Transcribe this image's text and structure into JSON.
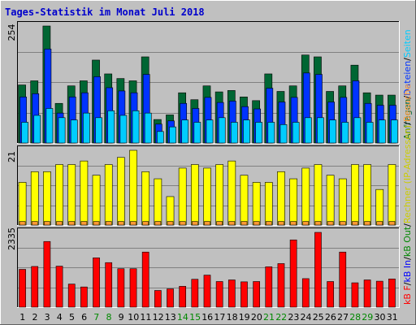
{
  "chart_data": {
    "type": "bar",
    "title": "Tages-Statistik im Monat Juli 2018",
    "x": [
      "1",
      "2",
      "3",
      "4",
      "5",
      "6",
      "7",
      "8",
      "9",
      "10",
      "11",
      "12",
      "13",
      "14",
      "15",
      "16",
      "17",
      "18",
      "19",
      "20",
      "21",
      "22",
      "23",
      "24",
      "25",
      "26",
      "27",
      "28",
      "29",
      "30",
      "31"
    ],
    "weekend_days": [
      "7",
      "8",
      "14",
      "15",
      "21",
      "22",
      "28",
      "29"
    ],
    "panels": [
      {
        "ymax_label": "254",
        "ymax": 254,
        "series": [
          {
            "name": "Anfragen",
            "color": "#006633",
            "values": [
              126,
              135,
              254,
              86,
              124,
              135,
              180,
              150,
              140,
              135,
              187,
              51,
              61,
              109,
              94,
              124,
              111,
              114,
              100,
              92,
              150,
              112,
              124,
              191,
              187,
              112,
              124,
              169,
              109,
              104,
              104
            ]
          },
          {
            "name": "Dateien",
            "color": "#0033ff",
            "values": [
              100,
              107,
              204,
              65,
              100,
              109,
              144,
              120,
              113,
              109,
              149,
              41,
              48,
              86,
              75,
              99,
              88,
              91,
              79,
              74,
              119,
              89,
              99,
              152,
              149,
              89,
              99,
              135,
              86,
              82,
              82
            ]
          },
          {
            "name": "Seiten",
            "color": "#00ccff",
            "values": [
              45,
              60,
              75,
              55,
              50,
              65,
              55,
              70,
              60,
              70,
              65,
              25,
              35,
              50,
              45,
              50,
              55,
              45,
              50,
              45,
              45,
              40,
              45,
              55,
              55,
              50,
              45,
              55,
              45,
              50,
              50
            ]
          }
        ]
      },
      {
        "ymax_label": "21",
        "ymax": 21,
        "series": [
          {
            "name": "Rechner (IP-Adressen)",
            "color": "#ffff00",
            "values": [
              12,
              15,
              15,
              17,
              17,
              18,
              14,
              17,
              19,
              21,
              15,
              13,
              8,
              16,
              17,
              16,
              17,
              18,
              14,
              12,
              12,
              15,
              13,
              16,
              17,
              14,
              13,
              17,
              17,
              10,
              17
            ]
          },
          {
            "name": "Besuche",
            "color": "#ff9933",
            "values": [
              1,
              1,
              1,
              1,
              1,
              1,
              1,
              1,
              1,
              1,
              1,
              1,
              1,
              1,
              1,
              1,
              1,
              1,
              1,
              1,
              1,
              1,
              1,
              1,
              1,
              1,
              1,
              1,
              1,
              1,
              1
            ]
          }
        ]
      },
      {
        "ymax_label": "2335",
        "ymax": 2335,
        "series": [
          {
            "name": "kB F",
            "color": "#ff0000",
            "values": [
              1180,
              1270,
              2050,
              1280,
              720,
              630,
              1540,
              1390,
              1200,
              1200,
              1720,
              520,
              570,
              650,
              870,
              1000,
              800,
              850,
              790,
              800,
              1260,
              1360,
              2100,
              890,
              2335,
              800,
              1720,
              760,
              850,
              810,
              880
            ]
          }
        ]
      }
    ],
    "legend": {
      "top": [
        "Anfragen",
        "/",
        "Dateien",
        "/",
        "Seiten"
      ],
      "bottom": [
        "kB F",
        "/",
        "kB In",
        "/",
        "kB Out",
        "/",
        "Rechner (IP-Adressen)",
        "/",
        "Besuche"
      ]
    },
    "colors": {
      "background": "#c0c0c0",
      "border_light": "#ffffff",
      "border_dark": "#606060",
      "frame": "#000000",
      "grid": "#808080",
      "title": "#0000cc",
      "weekday": "#000000",
      "weekend": "#008800",
      "kB_In": "#0000ff",
      "kB_Out": "#008800",
      "bar_outline": "#000000"
    }
  }
}
